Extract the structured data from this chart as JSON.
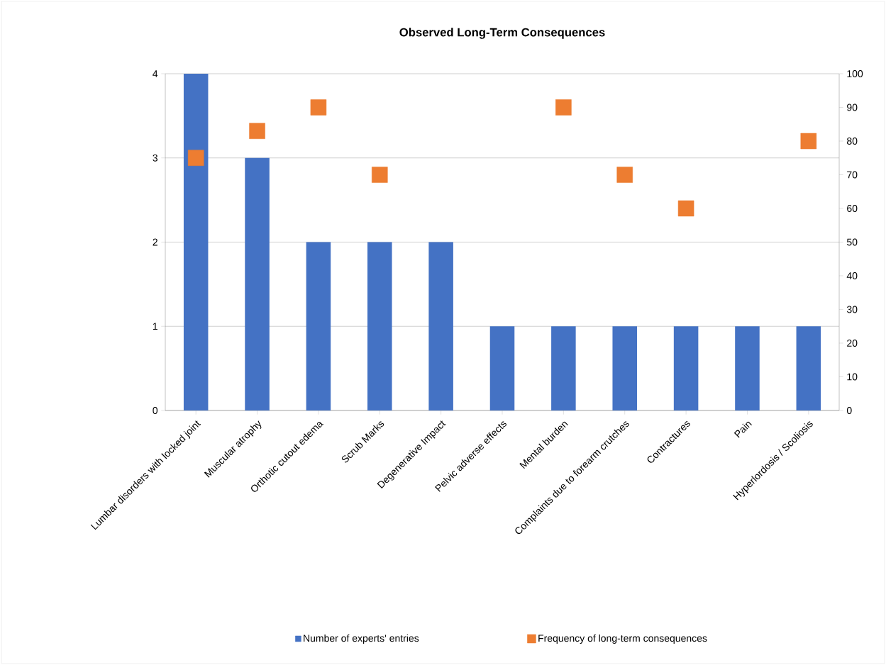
{
  "chart_data": {
    "type": "bar",
    "title": "Observed Long-Term Consequences",
    "categories": [
      "Lumbar disorders with locked joint",
      "Muscular atrophy",
      "Orthotic cutout edema",
      "Scrub Marks",
      "Degenerative Impact",
      "Pelvic adverse effects",
      "Mental burden",
      "Complaints due to forearm crutches",
      "Contractures",
      "Pain",
      "Hyperlordosis / Scoliosis"
    ],
    "series": [
      {
        "name": "Number of experts' entries",
        "color": "#4472c4",
        "values": [
          4,
          3,
          2,
          2,
          2,
          1,
          1,
          1,
          1,
          1,
          1
        ]
      },
      {
        "name": "Frequency of long-term consequences",
        "type": "scatter",
        "axis": "y2",
        "marker": "square",
        "color": "#ed7d31",
        "values": [
          75,
          83,
          90,
          70,
          null,
          null,
          90,
          70,
          60,
          null,
          80
        ]
      }
    ],
    "ylim": [
      0,
      4
    ],
    "yticks": [
      0,
      1,
      2,
      3,
      4
    ],
    "y2lim": [
      0,
      100
    ],
    "y2ticks": [
      0,
      10,
      20,
      30,
      40,
      50,
      60,
      70,
      80,
      90,
      100
    ],
    "grid": "y",
    "legend": "bottom"
  }
}
